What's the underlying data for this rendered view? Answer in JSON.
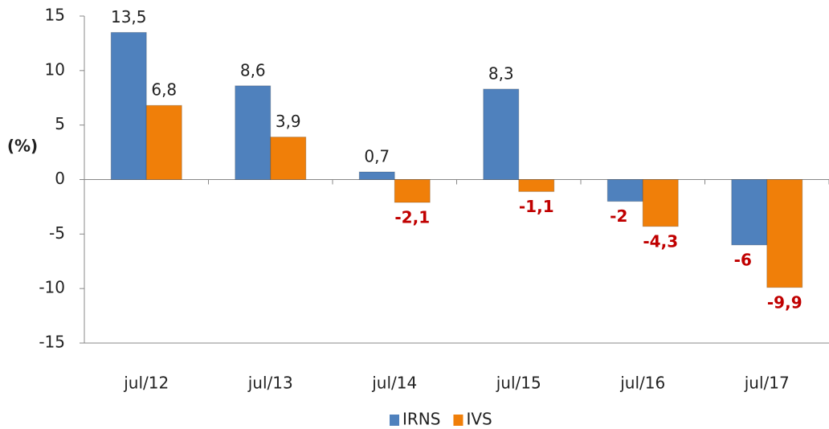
{
  "chart_data": {
    "type": "bar",
    "ylabel": "(%)",
    "categories": [
      "jul/12",
      "jul/13",
      "jul/14",
      "jul/15",
      "jul/16",
      "jul/17"
    ],
    "series": [
      {
        "name": "IRNS",
        "color": "#4f81bd",
        "values": [
          13.5,
          8.6,
          0.7,
          8.3,
          -2,
          -6
        ],
        "value_labels": [
          "13,5",
          "8,6",
          "0,7",
          "8,3",
          "-2",
          "-6"
        ]
      },
      {
        "name": "IVS",
        "color": "#f07f09",
        "values": [
          6.8,
          3.9,
          -2.1,
          -1.1,
          -4.3,
          -9.9
        ],
        "value_labels": [
          "6,8",
          "3,9",
          "-2,1",
          "-1,1",
          "-4,3",
          "-9,9"
        ]
      }
    ],
    "ylim": [
      -15,
      15
    ],
    "yticks": [
      -15,
      -10,
      -5,
      0,
      5,
      10,
      15
    ],
    "grid": false,
    "legend": "bottom"
  }
}
